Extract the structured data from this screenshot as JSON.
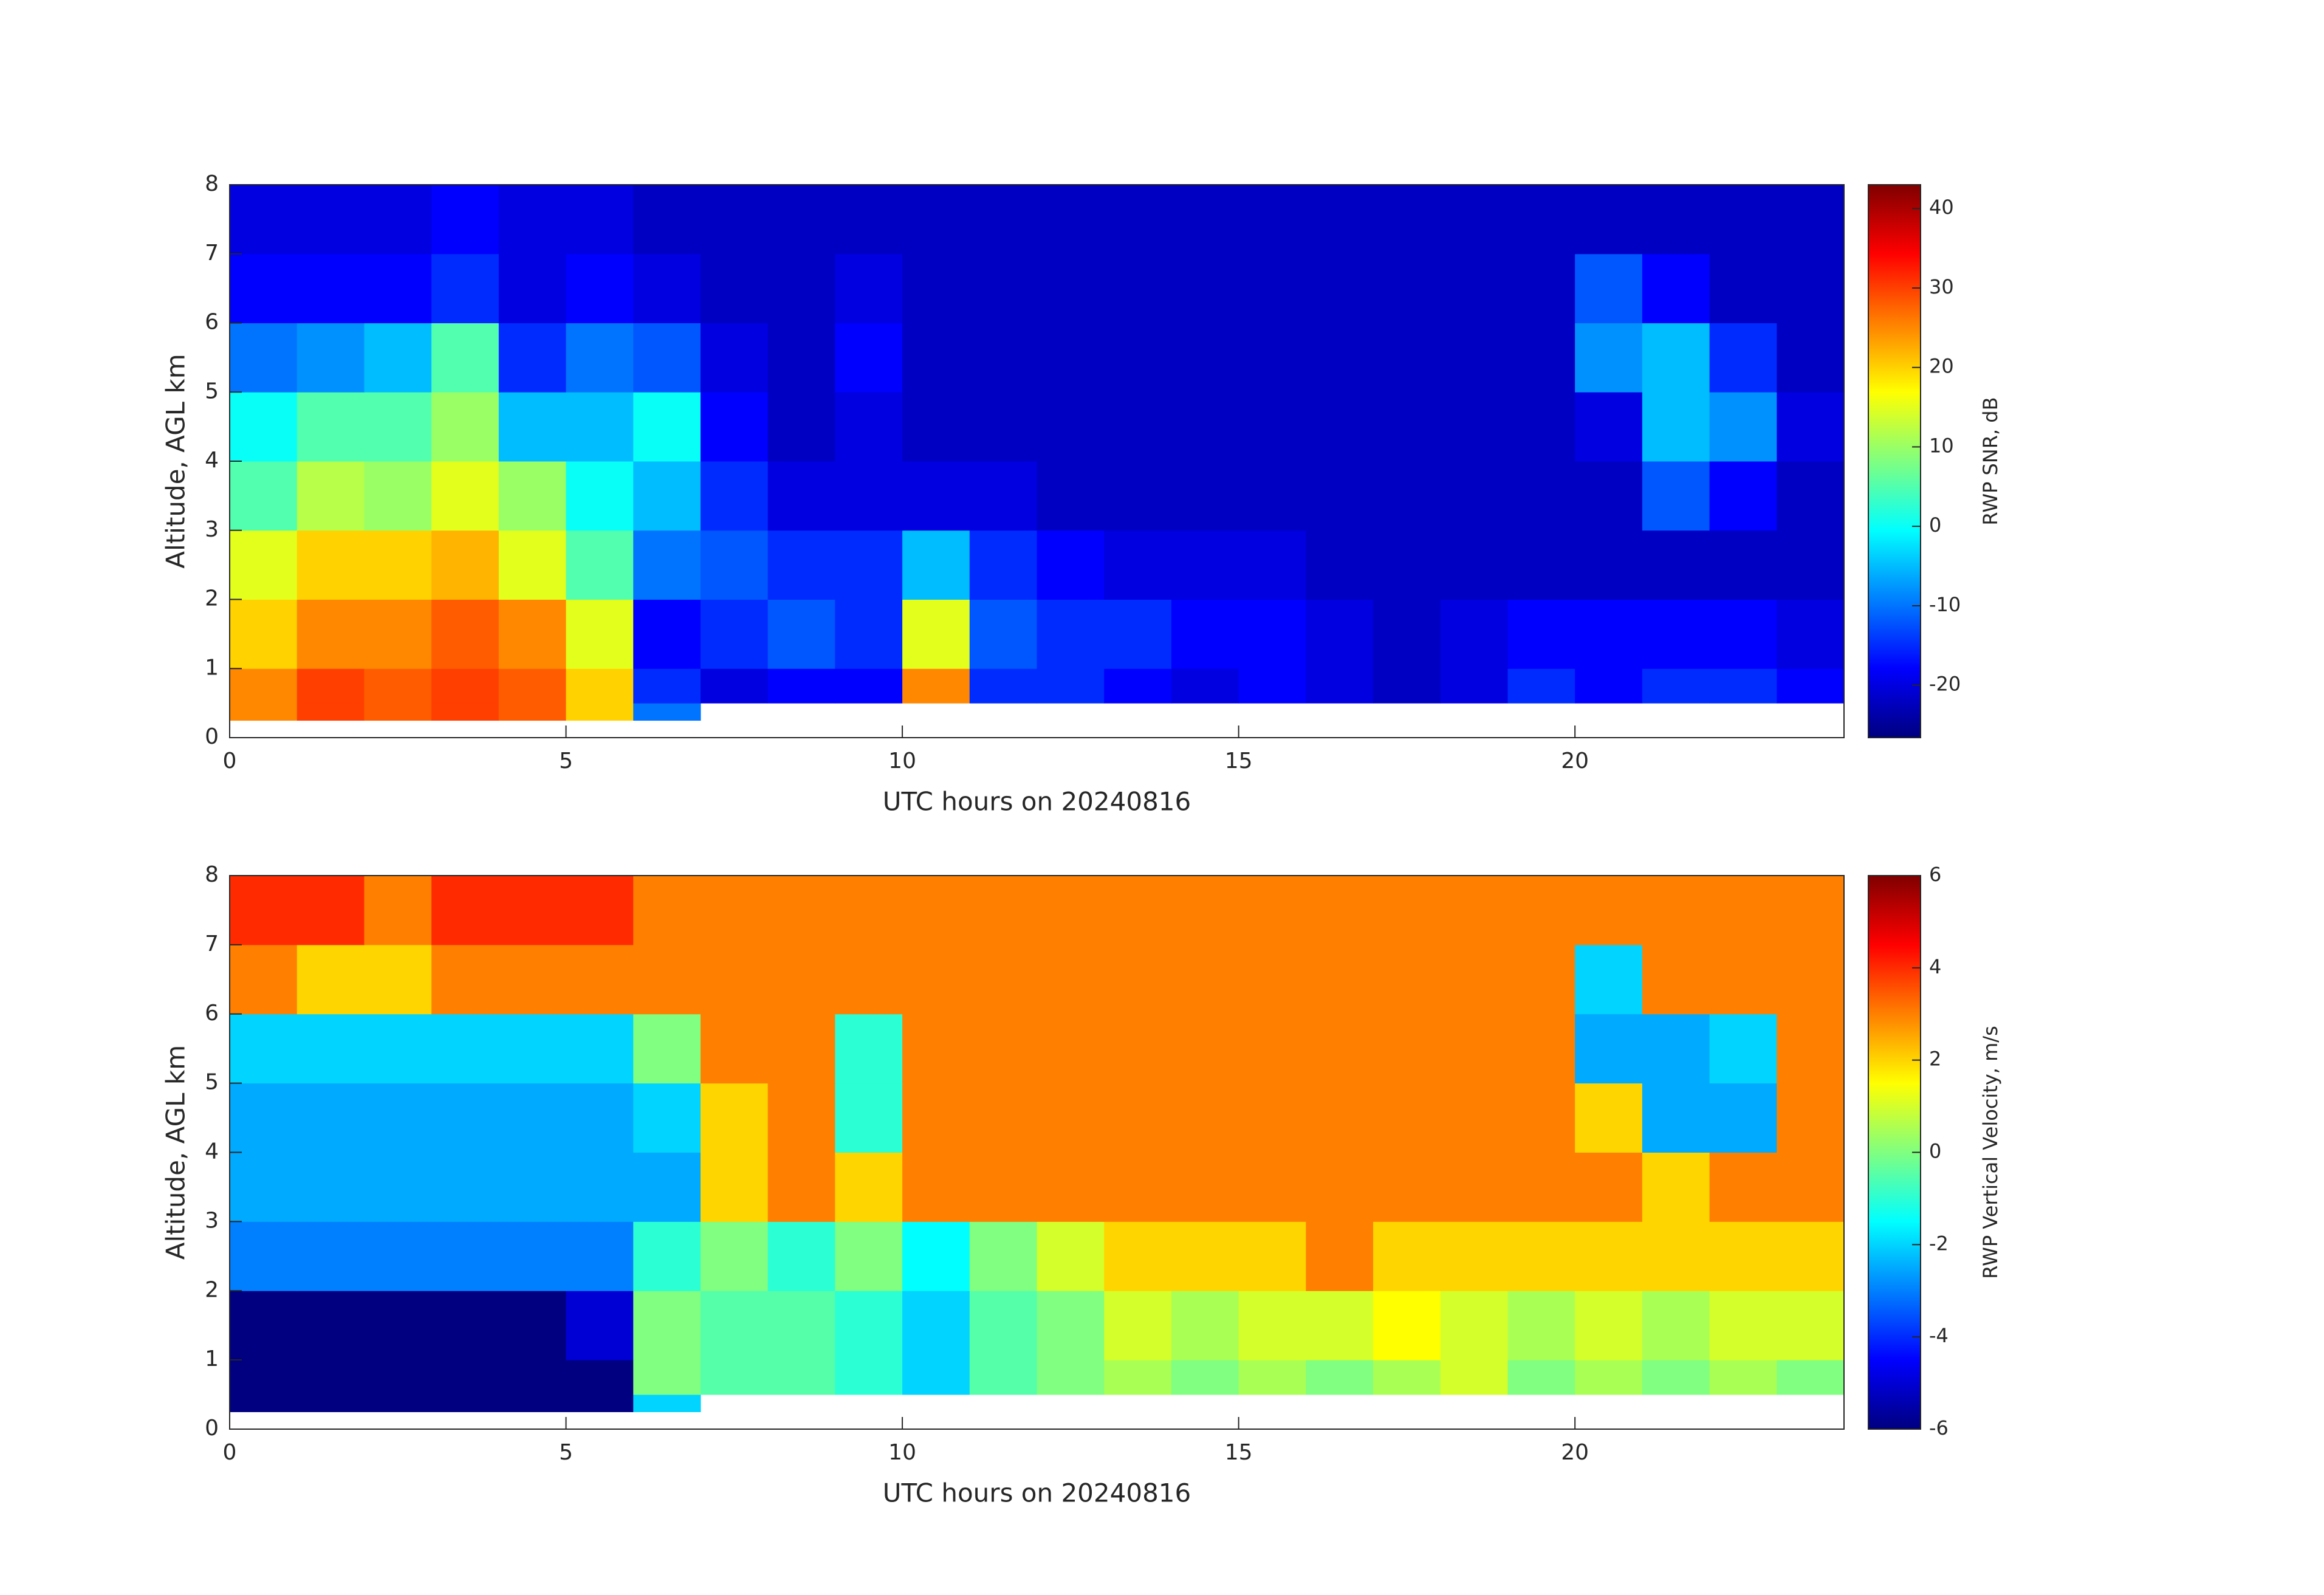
{
  "chart_data": [
    {
      "type": "heatmap",
      "x_label": "UTC hours on 20240816",
      "y_label": "Altitude, AGL km",
      "colorbar_label": "RWP SNR, dB",
      "colormap": "jet",
      "xlim": [
        0,
        24
      ],
      "ylim": [
        0,
        8
      ],
      "xticks": [
        0,
        5,
        10,
        15,
        20
      ],
      "yticks": [
        0,
        1,
        2,
        3,
        4,
        5,
        6,
        7,
        8
      ],
      "clim": [
        -26.6,
        43
      ],
      "cticks": [
        -20,
        -10,
        0,
        10,
        20,
        30,
        40
      ],
      "x_edges": [
        0,
        1,
        2,
        3,
        4,
        5,
        6,
        7,
        8,
        9,
        10,
        11,
        12,
        13,
        14,
        15,
        16,
        17,
        18,
        19,
        20,
        21,
        22,
        23,
        24
      ],
      "y_edges": [
        0.25,
        0.5,
        1,
        2,
        3,
        4,
        5,
        6,
        7,
        8
      ],
      "z": [
        [
          25,
          30,
          28,
          30,
          28,
          20,
          -10,
          null,
          null,
          null,
          null,
          null,
          null,
          null,
          null,
          null,
          null,
          null,
          null,
          null,
          null,
          null,
          null,
          null
        ],
        [
          25,
          30,
          28,
          30,
          28,
          20,
          -15,
          -20,
          -18,
          -18,
          25,
          -15,
          -15,
          -18,
          -20,
          -18,
          -20,
          -22,
          -20,
          -15,
          -18,
          -15,
          -15,
          -18
        ],
        [
          20,
          25,
          25,
          28,
          25,
          15,
          -18,
          -15,
          -12,
          -15,
          15,
          -12,
          -15,
          -15,
          -18,
          -18,
          -20,
          -22,
          -20,
          -18,
          -18,
          -18,
          -18,
          -20
        ],
        [
          15,
          20,
          20,
          22,
          15,
          5,
          -10,
          -12,
          -15,
          -15,
          -5,
          -15,
          -18,
          -20,
          -20,
          -20,
          -22,
          -22,
          -22,
          -22,
          -22,
          -22,
          -22,
          -22
        ],
        [
          5,
          12,
          10,
          15,
          10,
          0,
          -5,
          -15,
          -20,
          -20,
          -20,
          -20,
          -22,
          -22,
          -22,
          -22,
          -22,
          -22,
          -22,
          -22,
          -22,
          -12,
          -18,
          -22
        ],
        [
          0,
          5,
          5,
          10,
          -5,
          -5,
          0,
          -18,
          -22,
          -20,
          -22,
          -22,
          -22,
          -22,
          -22,
          -22,
          -22,
          -22,
          -22,
          -22,
          -20,
          -5,
          -8,
          -20
        ],
        [
          -10,
          -8,
          -5,
          5,
          -15,
          -10,
          -12,
          -20,
          -22,
          -18,
          -22,
          -22,
          -22,
          -22,
          -22,
          -22,
          -22,
          -22,
          -22,
          -22,
          -8,
          -5,
          -15,
          -22
        ],
        [
          -18,
          -18,
          -18,
          -15,
          -20,
          -18,
          -20,
          -22,
          -22,
          -20,
          -22,
          -22,
          -22,
          -22,
          -22,
          -22,
          -22,
          -22,
          -22,
          -22,
          -12,
          -18,
          -22,
          -22
        ],
        [
          -20,
          -20,
          -20,
          -18,
          -20,
          -20,
          -22,
          -22,
          -22,
          -22,
          -22,
          -22,
          -22,
          -22,
          -22,
          -22,
          -22,
          -22,
          -22,
          -22,
          -22,
          -22,
          -22,
          -22
        ]
      ]
    },
    {
      "type": "heatmap",
      "x_label": "UTC hours on 20240816",
      "y_label": "Altitude, AGL km",
      "colorbar_label": "RWP Vertical Velocity, m/s",
      "colormap": "jet",
      "xlim": [
        0,
        24
      ],
      "ylim": [
        0,
        8
      ],
      "xticks": [
        0,
        5,
        10,
        15,
        20
      ],
      "yticks": [
        0,
        1,
        2,
        3,
        4,
        5,
        6,
        7,
        8
      ],
      "clim": [
        -6,
        6
      ],
      "cticks": [
        -6,
        -4,
        -2,
        0,
        2,
        4,
        6
      ],
      "x_edges": [
        0,
        1,
        2,
        3,
        4,
        5,
        6,
        7,
        8,
        9,
        10,
        11,
        12,
        13,
        14,
        15,
        16,
        17,
        18,
        19,
        20,
        21,
        22,
        23,
        24
      ],
      "y_edges": [
        0.25,
        0.5,
        1,
        2,
        3,
        4,
        5,
        6,
        7,
        8
      ],
      "z": [
        [
          -6,
          -6,
          -6,
          -6,
          -6,
          -6,
          -2,
          null,
          null,
          null,
          null,
          null,
          null,
          null,
          null,
          null,
          null,
          null,
          null,
          null,
          null,
          null,
          null,
          null
        ],
        [
          -6,
          -6,
          -6,
          -6,
          -6,
          -6,
          0,
          -0.5,
          -0.5,
          -1,
          -2,
          -0.5,
          0,
          0.5,
          0,
          0.5,
          0,
          0.5,
          1,
          0,
          0.5,
          0,
          0.5,
          0
        ],
        [
          -6,
          -6,
          -6,
          -6,
          -6,
          -5,
          0,
          -0.5,
          -0.5,
          -1,
          -2,
          -0.5,
          0,
          1,
          0.5,
          1,
          1,
          1.5,
          1,
          0.5,
          1,
          0.5,
          1,
          1
        ],
        [
          -3,
          -3,
          -3,
          -3,
          -3,
          -3,
          -1,
          0,
          -1,
          0,
          -1.5,
          0,
          1,
          2,
          2,
          2,
          3,
          2,
          2,
          2,
          2,
          2,
          2,
          2
        ],
        [
          -2.5,
          -2.5,
          -2.5,
          -2.5,
          -2.5,
          -2.5,
          -2.5,
          2,
          3,
          2,
          3,
          3,
          3,
          3,
          3,
          3,
          3,
          3,
          3,
          3,
          3,
          2,
          3,
          3
        ],
        [
          -2.5,
          -2.5,
          -2.5,
          -2.5,
          -2.5,
          -2.5,
          -2,
          2,
          3,
          -1,
          3,
          3,
          3,
          3,
          3,
          3,
          3,
          3,
          3,
          3,
          2,
          -2.5,
          -2.5,
          3
        ],
        [
          -2,
          -2,
          -2,
          -2,
          -2,
          -2,
          0,
          3,
          3,
          -1,
          3,
          3,
          3,
          3,
          3,
          3,
          3,
          3,
          3,
          3,
          -2.5,
          -2.5,
          -2,
          3
        ],
        [
          3,
          2,
          2,
          3,
          3,
          3,
          3,
          3,
          3,
          3,
          3,
          3,
          3,
          3,
          3,
          3,
          3,
          3,
          3,
          3,
          -2,
          3,
          3,
          3
        ],
        [
          4,
          4,
          3,
          4,
          4,
          4,
          3,
          3,
          3,
          3,
          3,
          3,
          3,
          3,
          3,
          3,
          3,
          3,
          3,
          3,
          3,
          3,
          3,
          3
        ]
      ]
    }
  ]
}
